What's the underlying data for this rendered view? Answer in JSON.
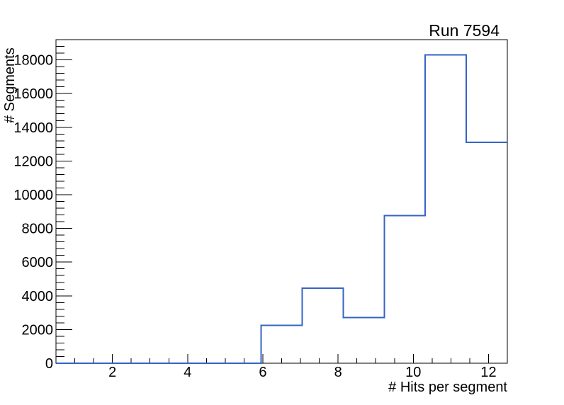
{
  "chart_data": {
    "type": "bar",
    "subtype": "step-histogram",
    "title": "Run 7594",
    "xlabel": "# Hits per segment",
    "ylabel": "# Segments",
    "x_range": [
      0.5,
      12.5
    ],
    "y_range": [
      0,
      19200
    ],
    "n_bins": 11,
    "bin_edges": [
      0.5,
      1.5909,
      2.6818,
      3.7727,
      4.8636,
      5.9545,
      7.0455,
      8.1364,
      9.2273,
      10.3182,
      11.4091,
      12.5
    ],
    "counts": [
      0,
      0,
      0,
      0,
      0,
      2250,
      4450,
      2700,
      8750,
      18300,
      13100
    ],
    "x_major_ticks": [
      2,
      4,
      6,
      8,
      10,
      12
    ],
    "x_major_tick_labels": [
      "2",
      "4",
      "6",
      "8",
      "10",
      "12"
    ],
    "x_minor_tick_step": 0.5,
    "y_major_ticks": [
      0,
      2000,
      4000,
      6000,
      8000,
      10000,
      12000,
      14000,
      16000,
      18000
    ],
    "y_major_tick_labels": [
      "0",
      "2000",
      "4000",
      "6000",
      "8000",
      "10000",
      "12000",
      "14000",
      "16000",
      "18000"
    ],
    "y_minor_tick_step": 400,
    "grid": false,
    "legend": null,
    "line_color": "#3564c4",
    "axis_color": "#000000",
    "background_color": "#ffffff"
  }
}
